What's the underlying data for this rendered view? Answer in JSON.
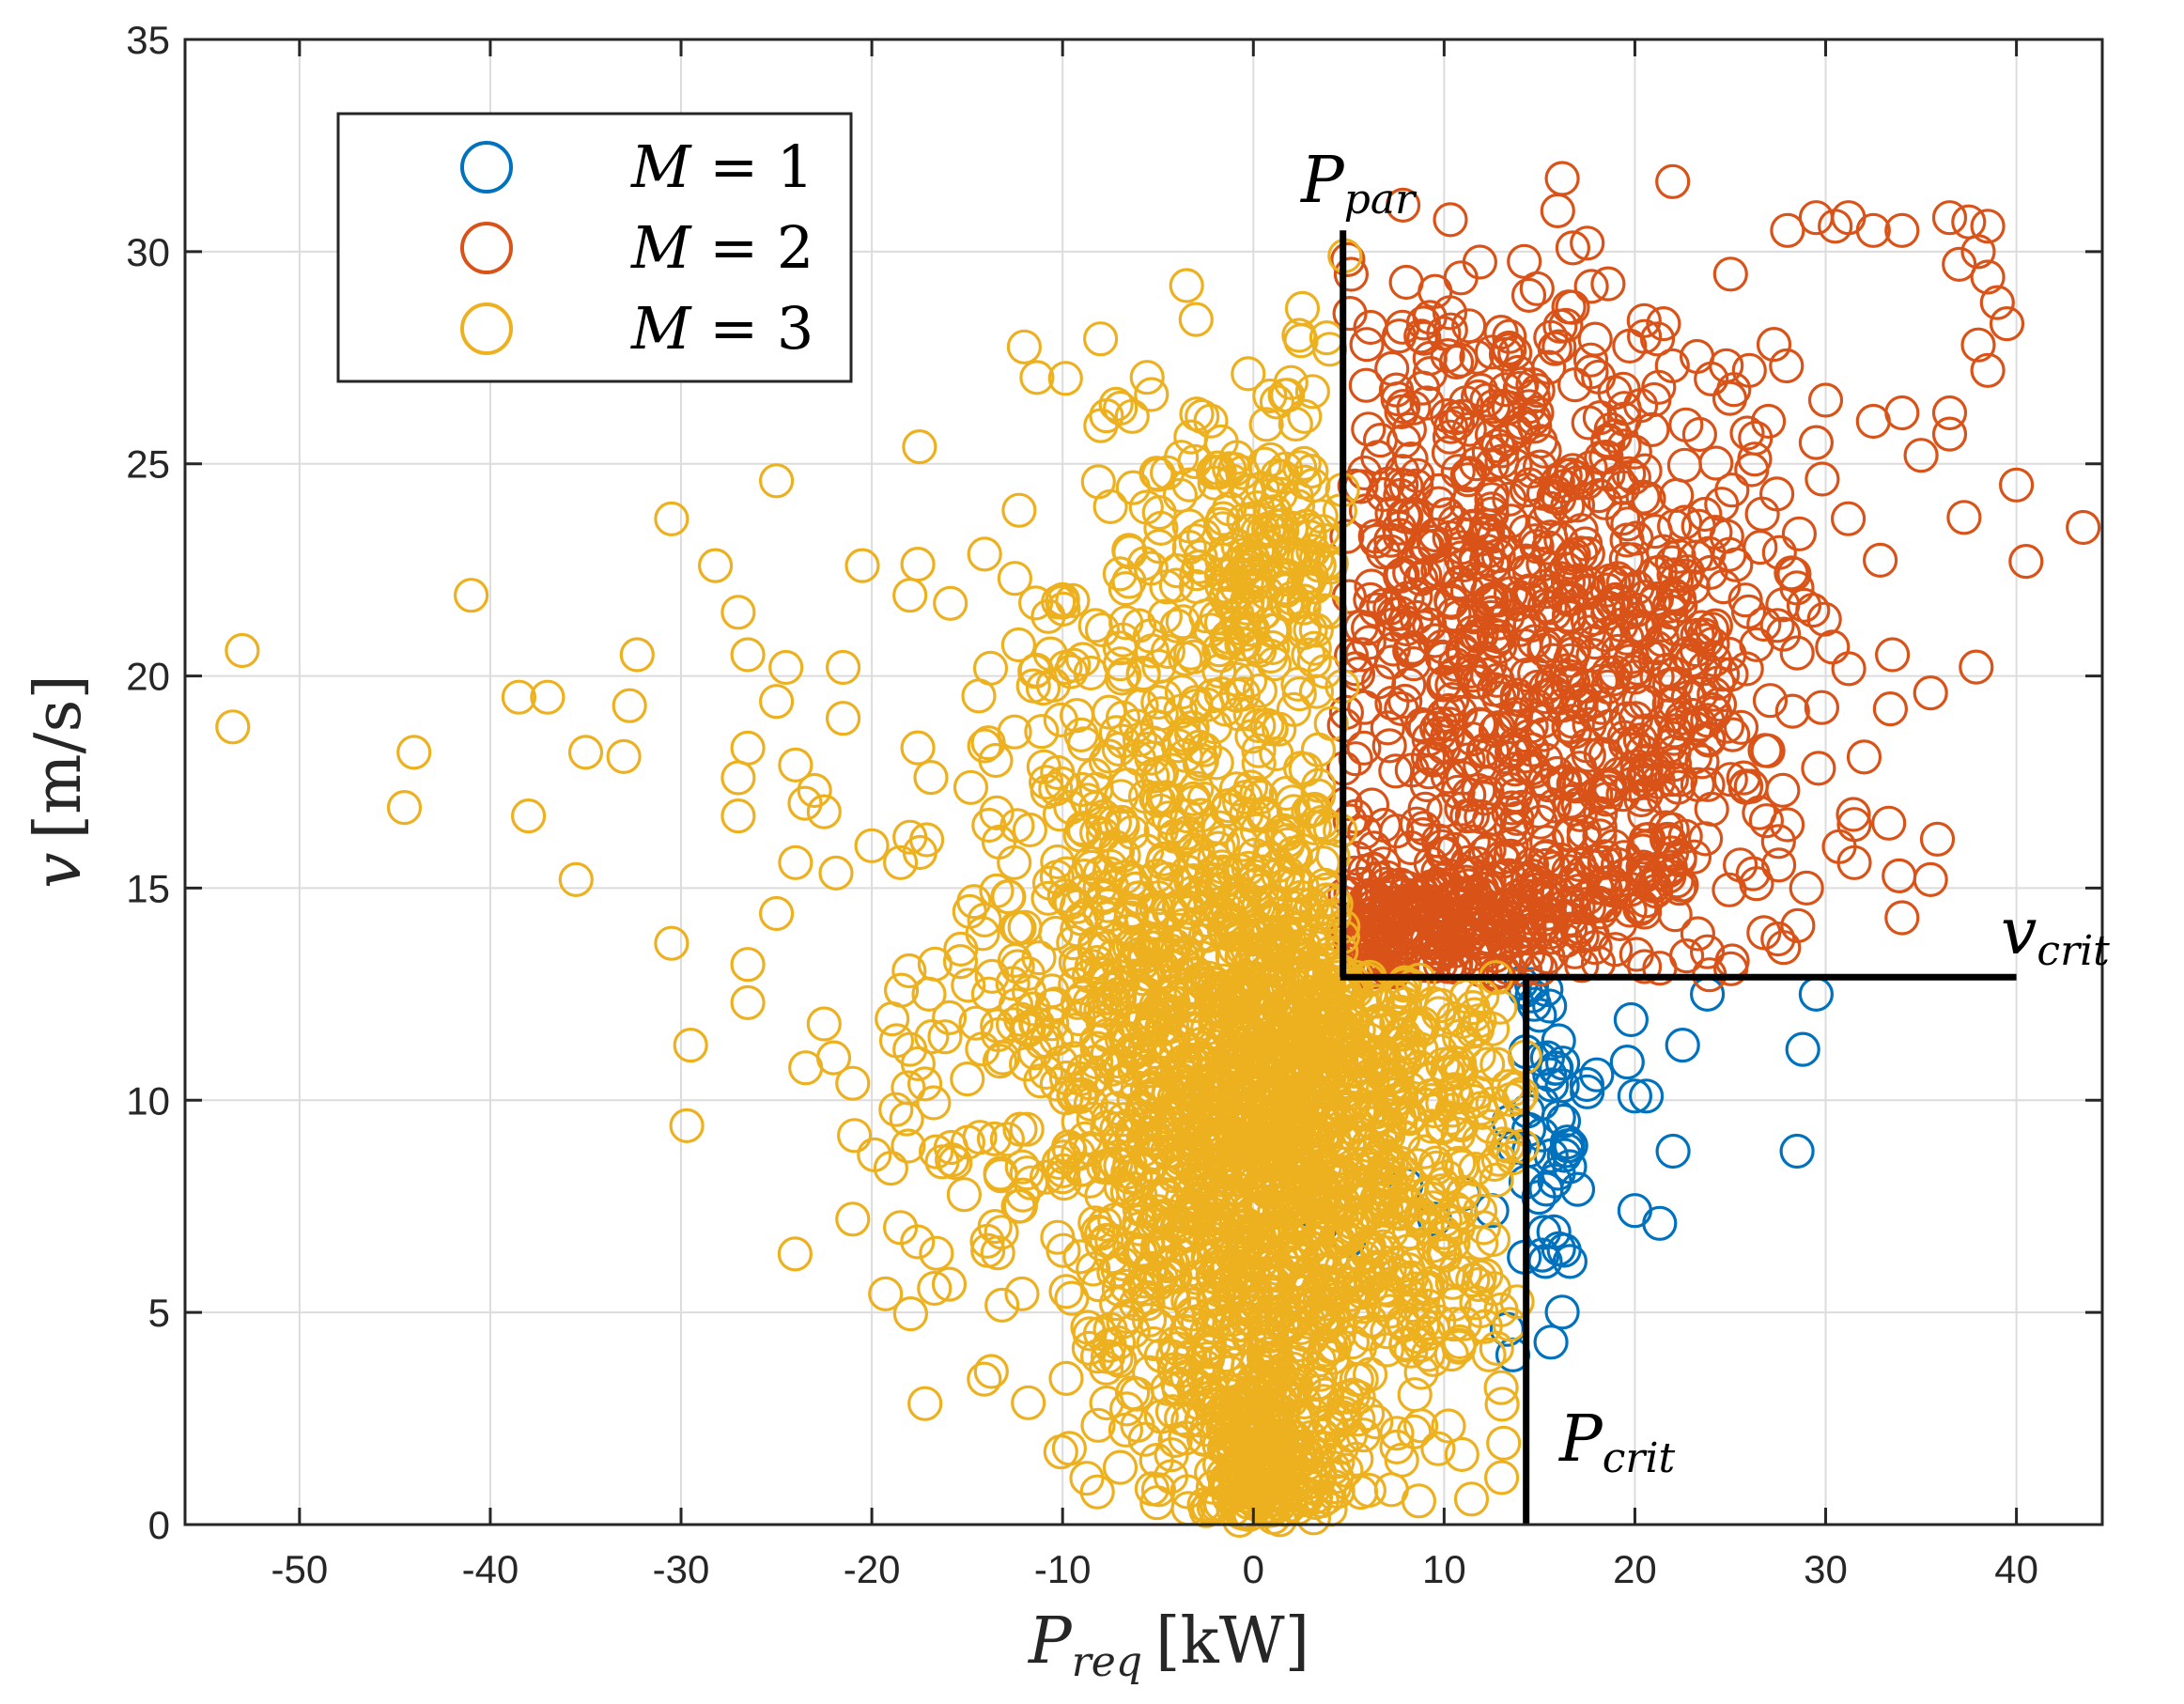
{
  "chart_data": {
    "type": "scatter",
    "title": "",
    "xlabel": {
      "main": "P",
      "sub": "req",
      "unit": "[kW]"
    },
    "ylabel": {
      "main": "v",
      "unit": "[m/s]"
    },
    "xlim": [
      -56,
      44.5
    ],
    "ylim": [
      0,
      35
    ],
    "xticks": [
      -50,
      -40,
      -30,
      -20,
      -10,
      0,
      10,
      20,
      30,
      40
    ],
    "xtick_labels": [
      "-50",
      "-40",
      "-30",
      "-20",
      "-10",
      "0",
      "10",
      "20",
      "30",
      "40"
    ],
    "yticks": [
      0,
      5,
      10,
      15,
      20,
      25,
      30,
      35
    ],
    "ytick_labels": [
      "0",
      "5",
      "10",
      "15",
      "20",
      "25",
      "30",
      "35"
    ],
    "grid": true,
    "legend_position": "top-left",
    "marker": "open-circle",
    "thresholds": {
      "P_par": 4.7,
      "P_crit": 14.3,
      "v_crit": 12.9,
      "v_top": 30.5,
      "x_right": 40.0
    },
    "annotations": [
      {
        "id": "p-par",
        "main": "P",
        "sub": "par"
      },
      {
        "id": "v-crit",
        "main": "v",
        "sub": "crit"
      },
      {
        "id": "p-crit",
        "main": "P",
        "sub": "crit"
      }
    ],
    "series": [
      {
        "name": "M = 1",
        "color": "#0072BD",
        "sample_points": [
          [
            15.0,
            12.0
          ],
          [
            16.0,
            11.4
          ],
          [
            18.0,
            10.6
          ],
          [
            19.8,
            11.9
          ],
          [
            22.5,
            11.3
          ],
          [
            23.8,
            12.5
          ],
          [
            29.5,
            12.5
          ],
          [
            28.8,
            11.2
          ],
          [
            20.0,
            10.1
          ],
          [
            20.6,
            10.1
          ],
          [
            19.6,
            10.9
          ],
          [
            17.5,
            10.2
          ],
          [
            16.0,
            9.6
          ],
          [
            16.3,
            8.7
          ],
          [
            15.8,
            8.1
          ],
          [
            17.0,
            7.9
          ],
          [
            22.0,
            8.8
          ],
          [
            28.5,
            8.8
          ],
          [
            20.0,
            7.4
          ],
          [
            21.3,
            7.1
          ],
          [
            16.0,
            6.5
          ],
          [
            16.6,
            6.2
          ],
          [
            15.3,
            6.2
          ],
          [
            14.2,
            6.3
          ],
          [
            13.3,
            4.6
          ],
          [
            13.6,
            4.0
          ],
          [
            15.6,
            4.3
          ],
          [
            8.0,
            8.0
          ],
          [
            9.5,
            7.2
          ],
          [
            11.0,
            7.8
          ],
          [
            12.5,
            7.4
          ],
          [
            3.5,
            7.0
          ],
          [
            5.0,
            6.7
          ]
        ],
        "cluster_regions": [
          {
            "center": [
              15.4,
              10.0
            ],
            "spread": [
              0.9,
              2.4
            ],
            "count": 40
          }
        ]
      },
      {
        "name": "M = 2",
        "color": "#D95319",
        "sample_points": [
          [
            17.5,
            30.2
          ],
          [
            28.0,
            30.5
          ],
          [
            29.5,
            30.8
          ],
          [
            30.5,
            30.6
          ],
          [
            31.2,
            30.8
          ],
          [
            32.5,
            30.5
          ],
          [
            34.0,
            30.5
          ],
          [
            36.5,
            30.8
          ],
          [
            37.5,
            30.7
          ],
          [
            38.5,
            30.6
          ],
          [
            38.0,
            30.0
          ],
          [
            37.0,
            29.7
          ],
          [
            38.5,
            29.4
          ],
          [
            39.0,
            28.8
          ],
          [
            39.5,
            28.3
          ],
          [
            38.0,
            27.8
          ],
          [
            38.5,
            27.2
          ],
          [
            40.0,
            24.5
          ],
          [
            40.5,
            22.7
          ],
          [
            43.5,
            23.5
          ],
          [
            36.5,
            26.2
          ],
          [
            34.0,
            26.2
          ],
          [
            35.0,
            25.2
          ],
          [
            36.5,
            25.7
          ],
          [
            32.5,
            26.0
          ],
          [
            30.0,
            26.5
          ],
          [
            33.5,
            20.5
          ],
          [
            35.5,
            19.6
          ],
          [
            31.5,
            16.5
          ],
          [
            31.5,
            15.6
          ],
          [
            35.5,
            15.2
          ],
          [
            34.0,
            14.3
          ],
          [
            29.0,
            15.0
          ],
          [
            27.5,
            13.8
          ],
          [
            27.8,
            13.6
          ],
          [
            23.8,
            13.5
          ],
          [
            29.5,
            25.5
          ],
          [
            27.0,
            26.0
          ],
          [
            26.0,
            27.2
          ],
          [
            20.5,
            28.0
          ],
          [
            21.5,
            28.3
          ],
          [
            24.0,
            27.0
          ],
          [
            19.0,
            21.8
          ],
          [
            16.5,
            21.8
          ],
          [
            14.5,
            21.8
          ],
          [
            12.5,
            21.8
          ]
        ],
        "cluster_regions": [
          {
            "center": [
              14.5,
              20.5
            ],
            "spread": [
              7.0,
              4.5
            ],
            "count": 520
          },
          {
            "center": [
              11.0,
              24.0
            ],
            "spread": [
              4.5,
              2.8
            ],
            "count": 140
          },
          {
            "center": [
              10.5,
              14.3
            ],
            "spread": [
              4.5,
              0.9
            ],
            "count": 220
          },
          {
            "center": [
              6.5,
              14.0
            ],
            "spread": [
              1.2,
              0.6
            ],
            "count": 60
          },
          {
            "center": [
              21.0,
              18.5
            ],
            "spread": [
              5.0,
              3.5
            ],
            "count": 200
          }
        ]
      },
      {
        "name": "M = 3",
        "color": "#EDB120",
        "sample_points": [
          [
            -53.5,
            18.8
          ],
          [
            -53.0,
            20.6
          ],
          [
            -44.5,
            16.9
          ],
          [
            -44.0,
            18.2
          ],
          [
            -41.0,
            21.9
          ],
          [
            -38.5,
            19.5
          ],
          [
            -38.0,
            16.7
          ],
          [
            -37.0,
            19.5
          ],
          [
            -35.5,
            15.2
          ],
          [
            -35.0,
            18.2
          ],
          [
            -33.0,
            18.1
          ],
          [
            -32.7,
            19.3
          ],
          [
            -32.3,
            20.5
          ],
          [
            -30.5,
            23.7
          ],
          [
            -30.5,
            13.7
          ],
          [
            -29.5,
            11.3
          ],
          [
            -29.7,
            9.4
          ],
          [
            -28.2,
            22.6
          ],
          [
            -27.0,
            21.5
          ],
          [
            -26.5,
            20.5
          ],
          [
            -26.5,
            18.3
          ],
          [
            -27.0,
            17.6
          ],
          [
            -27.0,
            16.7
          ],
          [
            -26.5,
            13.2
          ],
          [
            -26.5,
            12.3
          ],
          [
            -25.0,
            24.6
          ],
          [
            -25.0,
            19.4
          ],
          [
            -25.0,
            14.4
          ],
          [
            -24.0,
            15.6
          ],
          [
            -24.0,
            17.9
          ],
          [
            -23.5,
            17.0
          ],
          [
            -23.0,
            17.3
          ],
          [
            -22.5,
            16.8
          ],
          [
            -22.5,
            11.8
          ],
          [
            -22.0,
            11.0
          ],
          [
            -21.5,
            20.2
          ],
          [
            -21.5,
            19.0
          ],
          [
            -21.0,
            10.4
          ],
          [
            -20.5,
            22.6
          ],
          [
            -20.0,
            16.0
          ],
          [
            -21.0,
            7.2
          ],
          [
            -18.5,
            15.6
          ],
          [
            -18.0,
            16.2
          ],
          [
            -18.0,
            21.9
          ],
          [
            -17.5,
            25.4
          ],
          [
            -19.0,
            8.4
          ],
          [
            -18.5,
            7.0
          ],
          [
            -18.0,
            11.2
          ],
          [
            -17.0,
            12.5
          ],
          [
            -8.0,
            25.9
          ],
          [
            -3.5,
            29.2
          ],
          [
            -3.0,
            28.4
          ],
          [
            4.8,
            29.9
          ],
          [
            2.5,
            27.9
          ],
          [
            4.0,
            27.7
          ],
          [
            -12.5,
            22.3
          ],
          [
            -10.0,
            21.8
          ],
          [
            -24.5,
            20.2
          ]
        ],
        "cluster_regions": [
          {
            "center": [
              1.5,
              11.5
            ],
            "spread": [
              5.0,
              2.8
            ],
            "count": 900
          },
          {
            "center": [
              0.5,
              4.5
            ],
            "spread": [
              4.0,
              3.0
            ],
            "count": 500
          },
          {
            "center": [
              0.5,
              1.2
            ],
            "spread": [
              1.2,
              1.0
            ],
            "count": 160
          },
          {
            "center": [
              -6.0,
              11.0
            ],
            "spread": [
              6.0,
              4.0
            ],
            "count": 480
          },
          {
            "center": [
              -3.0,
              19.5
            ],
            "spread": [
              5.5,
              3.0
            ],
            "count": 220
          },
          {
            "center": [
              1.5,
              22.5
            ],
            "spread": [
              2.0,
              1.6
            ],
            "count": 90
          },
          {
            "center": [
              -1.0,
              24.5
            ],
            "spread": [
              3.5,
              1.4
            ],
            "count": 60
          },
          {
            "center": [
              9.0,
              7.0
            ],
            "spread": [
              4.0,
              3.0
            ],
            "count": 180
          }
        ]
      }
    ]
  }
}
